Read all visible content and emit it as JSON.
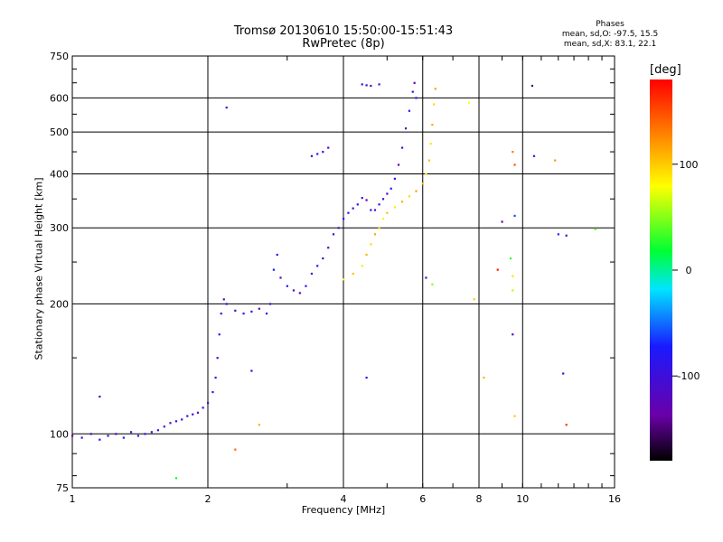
{
  "chart_data": {
    "type": "scatter",
    "title": "Tromsø 20130610 15:50:00-15:51:43",
    "subtitle": "RwPretec (8p)",
    "xlabel": "Frequency [MHz]",
    "ylabel": "Stationary phase Virtual Height [km]",
    "x_scale": "log",
    "y_scale": "log",
    "xlim": [
      1,
      16
    ],
    "ylim": [
      75,
      750
    ],
    "x_ticks": [
      1,
      2,
      4,
      6,
      8,
      10,
      16
    ],
    "y_ticks": [
      75,
      100,
      200,
      300,
      400,
      500,
      600,
      750
    ],
    "grid": true,
    "stats": {
      "title": "Phases",
      "o_line": "mean, sd,O: -97.5, 15.5",
      "x_line": "mean, sd,X: 83.1, 22.1"
    },
    "colorbar": {
      "label": "[deg]",
      "range": [
        -180,
        180
      ],
      "ticks": [
        100,
        0,
        -100
      ]
    },
    "series": [
      {
        "mode": "O",
        "phase_deg": -100,
        "points": [
          [
            1.0,
            99
          ],
          [
            1.05,
            98
          ],
          [
            1.1,
            100
          ],
          [
            1.15,
            97
          ],
          [
            1.2,
            99
          ],
          [
            1.25,
            100
          ],
          [
            1.3,
            98
          ],
          [
            1.35,
            101
          ],
          [
            1.4,
            99
          ],
          [
            1.45,
            100
          ],
          [
            1.5,
            101
          ],
          [
            1.55,
            102
          ],
          [
            1.6,
            104
          ],
          [
            1.65,
            106
          ],
          [
            1.7,
            107
          ],
          [
            1.75,
            108
          ],
          [
            1.8,
            110
          ],
          [
            1.85,
            111
          ],
          [
            1.9,
            112
          ],
          [
            1.95,
            115
          ],
          [
            2.0,
            118
          ],
          [
            2.05,
            125
          ],
          [
            2.08,
            135
          ],
          [
            2.1,
            150
          ],
          [
            2.12,
            170
          ],
          [
            2.14,
            190
          ],
          [
            2.17,
            205
          ],
          [
            2.2,
            200
          ],
          [
            2.3,
            193
          ],
          [
            2.4,
            190
          ],
          [
            2.5,
            192
          ],
          [
            2.6,
            195
          ],
          [
            2.7,
            190
          ],
          [
            2.75,
            200
          ],
          [
            2.8,
            240
          ],
          [
            2.85,
            260
          ],
          [
            2.9,
            230
          ],
          [
            3.0,
            220
          ],
          [
            3.1,
            215
          ],
          [
            3.2,
            212
          ],
          [
            3.3,
            220
          ],
          [
            3.4,
            235
          ],
          [
            3.5,
            245
          ],
          [
            3.6,
            255
          ],
          [
            3.7,
            270
          ],
          [
            3.8,
            290
          ],
          [
            3.9,
            300
          ],
          [
            4.0,
            315
          ],
          [
            4.1,
            325
          ],
          [
            4.2,
            333
          ],
          [
            4.3,
            340
          ],
          [
            4.4,
            352
          ],
          [
            4.5,
            348
          ],
          [
            4.6,
            330
          ],
          [
            4.7,
            330
          ],
          [
            4.8,
            340
          ],
          [
            4.9,
            350
          ],
          [
            5.0,
            360
          ],
          [
            5.1,
            370
          ],
          [
            5.2,
            390
          ],
          [
            5.3,
            420
          ],
          [
            5.4,
            460
          ],
          [
            5.5,
            510
          ],
          [
            5.6,
            560
          ],
          [
            5.7,
            620
          ],
          [
            5.75,
            650
          ],
          [
            5.8,
            600
          ],
          [
            3.4,
            440
          ],
          [
            3.5,
            445
          ],
          [
            3.6,
            450
          ],
          [
            3.7,
            460
          ],
          [
            4.4,
            645
          ],
          [
            4.5,
            642
          ],
          [
            4.6,
            640
          ],
          [
            4.8,
            645
          ],
          [
            2.2,
            570
          ],
          [
            4.5,
            135
          ],
          [
            6.1,
            230
          ]
        ]
      },
      {
        "mode": "X",
        "phase_deg": 100,
        "points": [
          [
            4.0,
            228
          ],
          [
            4.2,
            235
          ],
          [
            4.4,
            245
          ],
          [
            4.5,
            260
          ],
          [
            4.6,
            275
          ],
          [
            4.7,
            290
          ],
          [
            4.8,
            300
          ],
          [
            4.9,
            315
          ],
          [
            5.0,
            325
          ],
          [
            5.2,
            335
          ],
          [
            5.4,
            345
          ],
          [
            5.6,
            355
          ],
          [
            5.8,
            365
          ],
          [
            6.0,
            380
          ],
          [
            6.1,
            400
          ],
          [
            6.2,
            430
          ],
          [
            6.25,
            470
          ],
          [
            6.3,
            520
          ],
          [
            6.35,
            580
          ],
          [
            6.4,
            630
          ]
        ]
      },
      {
        "mode": "scattered",
        "phase_deg": 0,
        "points": [
          [
            1.15,
            122
          ],
          [
            1.7,
            79
          ],
          [
            2.3,
            92
          ],
          [
            2.6,
            105
          ],
          [
            2.5,
            140
          ],
          [
            9.5,
            450
          ],
          [
            9.6,
            420
          ],
          [
            9.6,
            320
          ],
          [
            9.5,
            232
          ],
          [
            9.5,
            215
          ],
          [
            9.4,
            255
          ],
          [
            9.5,
            170
          ],
          [
            9.6,
            110
          ],
          [
            7.6,
            585
          ],
          [
            10.5,
            640
          ],
          [
            10.6,
            440
          ],
          [
            11.8,
            430
          ],
          [
            12.0,
            290
          ],
          [
            12.5,
            288
          ],
          [
            12.3,
            138
          ],
          [
            12.5,
            105
          ],
          [
            14.5,
            298
          ],
          [
            8.2,
            135
          ],
          [
            9.0,
            310
          ],
          [
            8.8,
            240
          ],
          [
            7.8,
            205
          ],
          [
            6.3,
            222
          ]
        ]
      }
    ]
  }
}
